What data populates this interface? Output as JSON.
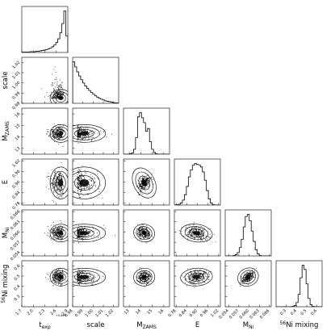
{
  "chart_data": {
    "type": "corner",
    "parameters": [
      {
        "key": "texp",
        "label": "t",
        "sub": "exp",
        "sup": "",
        "prefix": "",
        "range": [
          1.7,
          2.9
        ],
        "ticks": [
          1.7,
          2.0,
          2.3,
          2.6,
          2.9
        ],
        "tick_labels": [
          "1.7",
          "2.0",
          "2.3",
          "2.6",
          "2.9"
        ],
        "offset_label": "+5.8e4",
        "peak": 2.8,
        "hist_shape": "skew-left",
        "hist": [
          1,
          1,
          1,
          1,
          2,
          2,
          2,
          3,
          3,
          4,
          5,
          6,
          7,
          9,
          11,
          14,
          18,
          24,
          33,
          48,
          70,
          100,
          40
        ]
      },
      {
        "key": "scale",
        "label": "scale",
        "sub": "",
        "sup": "",
        "prefix": "",
        "range": [
          0.98,
          1.025
        ],
        "ticks": [
          0.98,
          0.99,
          1.0,
          1.01,
          1.02
        ],
        "tick_labels": [
          "0.98",
          "0.99",
          "1.00",
          "1.01",
          "1.02"
        ],
        "offset_label": "",
        "peak": 0.985,
        "hist_shape": "skew-right",
        "hist": [
          100,
          88,
          76,
          66,
          57,
          49,
          42,
          36,
          31,
          26,
          22,
          18,
          15,
          12,
          10,
          8,
          6,
          5,
          4,
          3,
          2,
          1,
          1
        ]
      },
      {
        "key": "mzams",
        "label": "M",
        "sub": "ZAMS",
        "sup": "",
        "prefix": "",
        "range": [
          12.5,
          16.5
        ],
        "ticks": [
          13,
          14,
          15,
          16
        ],
        "tick_labels": [
          "13",
          "14",
          "15",
          "16"
        ],
        "offset_label": "",
        "peak": 14.3,
        "hist_shape": "peaked",
        "hist": [
          0,
          0,
          0,
          1,
          3,
          12,
          40,
          90,
          100,
          88,
          76,
          55,
          62,
          30,
          12,
          4,
          1,
          0,
          0,
          0,
          0,
          0,
          0
        ]
      },
      {
        "key": "E",
        "label": "E",
        "sub": "",
        "sup": "",
        "prefix": "",
        "range": [
          0.77,
          1.03
        ],
        "ticks": [
          0.78,
          0.84,
          0.9,
          0.96,
          1.02
        ],
        "tick_labels": [
          "0.78",
          "0.84",
          "0.90",
          "0.96",
          "1.02"
        ],
        "offset_label": "",
        "peak": 0.895,
        "hist_shape": "broad",
        "hist": [
          0,
          1,
          2,
          5,
          12,
          25,
          45,
          68,
          85,
          96,
          100,
          98,
          97,
          92,
          80,
          60,
          35,
          15,
          5,
          1,
          0,
          0,
          0
        ]
      },
      {
        "key": "mni",
        "label": "M",
        "sub": "Ni",
        "sup": "",
        "prefix": "",
        "range": [
          0.053,
          0.0665
        ],
        "ticks": [
          0.054,
          0.057,
          0.06,
          0.063,
          0.066
        ],
        "tick_labels": [
          "0.054",
          "0.057",
          "0.060",
          "0.063",
          "0.066"
        ],
        "offset_label": "",
        "peak": 0.0597,
        "hist_shape": "peaked",
        "hist": [
          0,
          0,
          0,
          0,
          1,
          3,
          8,
          20,
          40,
          70,
          95,
          100,
          85,
          60,
          35,
          15,
          5,
          1,
          0,
          0,
          0,
          0,
          0
        ]
      },
      {
        "key": "ni_mixing",
        "label": "Ni mixing",
        "sub": "",
        "sup": "56",
        "prefix": "",
        "range": [
          0.2,
          0.65
        ],
        "ticks": [
          0.3,
          0.4,
          0.5,
          0.6
        ],
        "tick_labels": [
          "0.3",
          "0.4",
          "0.5",
          "0.6"
        ],
        "offset_label": "",
        "peak": 0.49,
        "hist_shape": "peaked",
        "hist": [
          0,
          0,
          0,
          0,
          0,
          0,
          0,
          0,
          1,
          3,
          10,
          30,
          70,
          100,
          90,
          55,
          20,
          5,
          1,
          0,
          0,
          0,
          0
        ]
      }
    ],
    "correlations": [
      [
        0,
        0,
        0,
        0,
        0,
        0
      ],
      [
        0.0,
        0,
        0,
        0,
        0,
        0
      ],
      [
        0.0,
        0.0,
        0,
        0,
        0,
        0
      ],
      [
        0.0,
        0.0,
        0.8,
        0,
        0,
        0
      ],
      [
        0.0,
        0.0,
        -0.35,
        -0.2,
        0,
        0
      ],
      [
        0.0,
        0.0,
        0.1,
        0.1,
        0.7,
        0
      ]
    ],
    "grid": false,
    "legend": "none"
  }
}
